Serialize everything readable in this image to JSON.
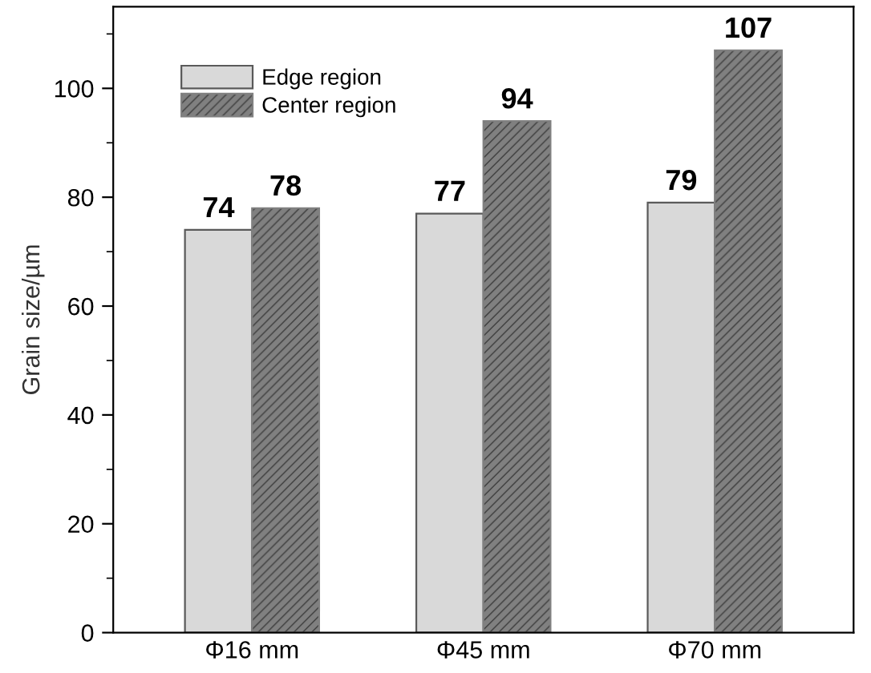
{
  "chart_data": {
    "type": "bar",
    "ylabel": "Grain size/µm",
    "categories": [
      "Φ16 mm",
      "Φ45 mm",
      "Φ70 mm"
    ],
    "series": [
      {
        "name": "Edge region",
        "color": "#d9d9d9",
        "values": [
          74,
          77,
          79
        ]
      },
      {
        "name": "Center region",
        "color": "#808080",
        "values": [
          78,
          94,
          107
        ]
      }
    ],
    "ylim": [
      0,
      115
    ],
    "yticks": [
      0,
      20,
      40,
      60,
      80,
      100
    ],
    "grid": false,
    "legend": "top left",
    "data_labels": true
  }
}
